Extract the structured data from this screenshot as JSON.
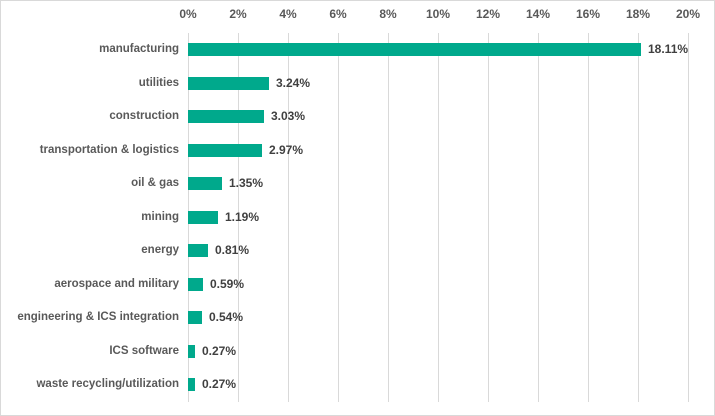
{
  "chart_data": {
    "type": "bar",
    "orientation": "horizontal",
    "title": "",
    "xlabel": "",
    "ylabel": "",
    "categories": [
      "manufacturing",
      "utilities",
      "construction",
      "transportation & logistics",
      "oil & gas",
      "mining",
      "energy",
      "aerospace and military",
      "engineering & ICS integration",
      "ICS software",
      "waste recycling/utilization"
    ],
    "values": [
      18.11,
      3.24,
      3.03,
      2.97,
      1.35,
      1.19,
      0.81,
      0.59,
      0.54,
      0.27,
      0.27
    ],
    "value_labels": [
      "18.11%",
      "3.24%",
      "3.03%",
      "2.97%",
      "1.35%",
      "1.19%",
      "0.81%",
      "0.59%",
      "0.54%",
      "0.27%",
      "0.27%"
    ],
    "x_axis": {
      "position": "top",
      "min": 0,
      "max": 20,
      "tick_step": 2,
      "ticks": [
        "0%",
        "2%",
        "4%",
        "6%",
        "8%",
        "10%",
        "12%",
        "14%",
        "16%",
        "18%",
        "20%"
      ]
    },
    "grid": true,
    "legend": "none",
    "colors": {
      "bar": "#00a98c",
      "gridline": "#d9d9d9",
      "frame_border": "#d9d9d9",
      "category_text": "#595959",
      "axis_text": "#595959",
      "value_text": "#404040",
      "background": "#ffffff"
    }
  }
}
